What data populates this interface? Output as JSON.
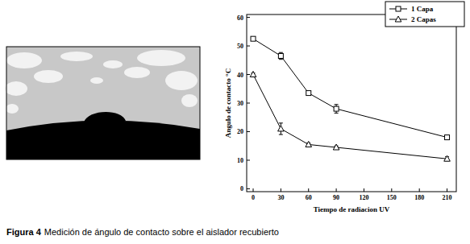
{
  "chart_data": {
    "type": "line",
    "x_label": "Tiempo de radiacion UV",
    "y_label": "Angulo de contacto °C",
    "x": [
      0,
      30,
      60,
      90,
      210
    ],
    "series": [
      {
        "name": "1 Capa",
        "color": "#000000",
        "marker": "square",
        "values": [
          52.5,
          46.5,
          33.5,
          28,
          18
        ],
        "errors": [
          0.5,
          1.2,
          0.5,
          1.5,
          0.5
        ]
      },
      {
        "name": "2 Capas",
        "color": "#000000",
        "marker": "triangle",
        "values": [
          40,
          21,
          15.5,
          14.5,
          10.5
        ],
        "errors": [
          0.5,
          2,
          0.5,
          0.5,
          0.7
        ]
      }
    ],
    "xlim": [
      -7,
      220
    ],
    "xticks": [
      0,
      30,
      60,
      90,
      120,
      150,
      180,
      210
    ],
    "ylim": [
      -1,
      61
    ],
    "yticks": [
      0,
      10,
      20,
      30,
      40,
      50,
      60
    ],
    "grid": false,
    "legend": "upper right"
  },
  "caption": {
    "label": "Figura 4",
    "text": "Medición de ángulo de contacto sobre el aislador recubierto"
  }
}
